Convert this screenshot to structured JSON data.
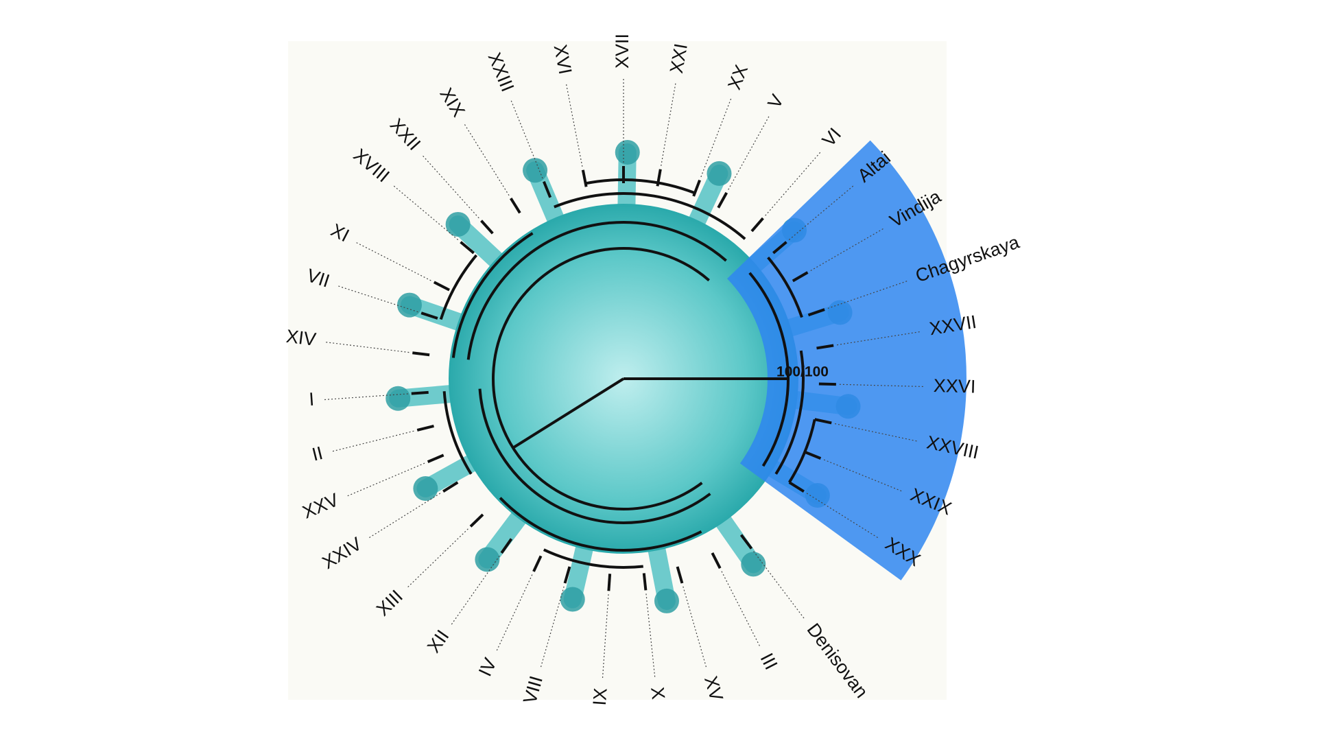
{
  "labels": [
    "Altai",
    "Vindija",
    "Chagyrskaya",
    "XXVII",
    "XXVI",
    "XXVIII",
    "XXIX",
    "XXX",
    "Denisovan",
    "III",
    "XV",
    "X",
    "IX",
    "VIII",
    "IV",
    "XII",
    "XIII",
    "XXIV",
    "XXV",
    "II",
    "I",
    "XIV",
    "VII",
    "XI",
    "XVIII",
    "XXII",
    "XIX",
    "XXIII",
    "XVI",
    "XVII",
    "XXI",
    "XX",
    "V",
    "VI"
  ],
  "support": "100/100"
}
